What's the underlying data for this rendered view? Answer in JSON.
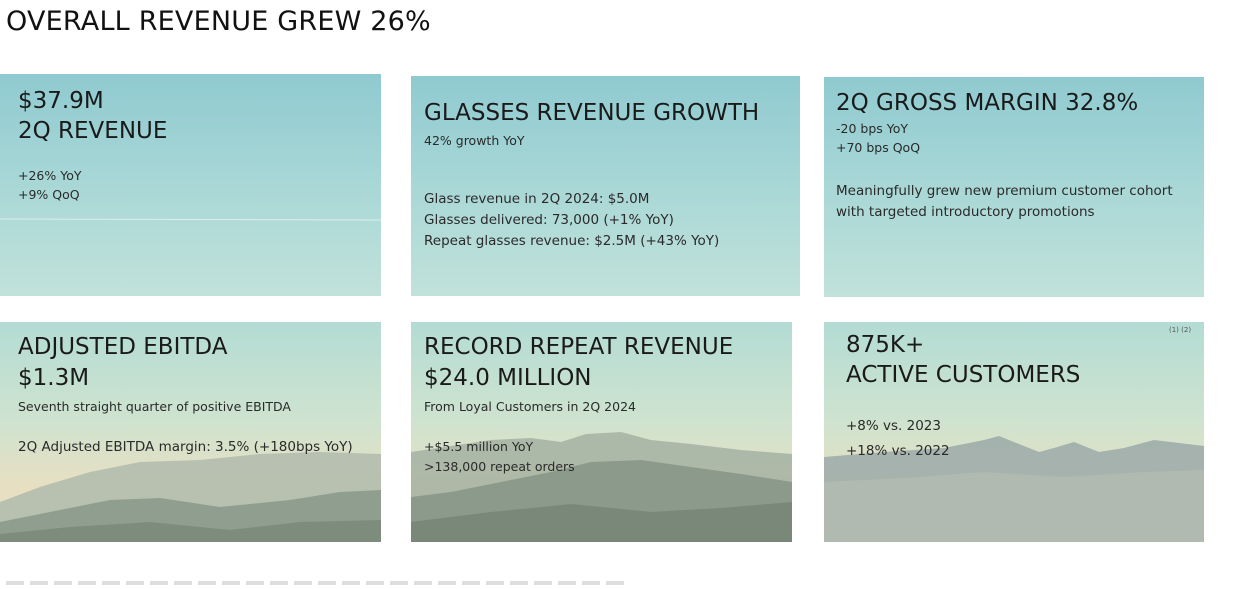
{
  "title": "OVERALL REVENUE GREW 26%",
  "cards": {
    "revenue": {
      "line1": "$37.9M",
      "line2": "2Q REVENUE",
      "details": [
        "+26% YoY",
        "+9% QoQ"
      ]
    },
    "glasses": {
      "heading": "GLASSES REVENUE GROWTH",
      "subheading": "42% growth YoY",
      "details": [
        "Glass revenue in 2Q 2024: $5.0M",
        "Glasses delivered: 73,000 (+1% YoY)",
        "Repeat glasses revenue: $2.5M (+43% YoY)"
      ]
    },
    "margin": {
      "heading": "2Q GROSS MARGIN 32.8%",
      "details": [
        "-20 bps YoY",
        "+70 bps QoQ"
      ],
      "note": [
        "Meaningfully grew new premium customer cohort",
        "with targeted introductory promotions"
      ]
    },
    "ebitda": {
      "line1": "ADJUSTED EBITDA",
      "line2": "$1.3M",
      "subheading": "Seventh straight quarter of positive EBITDA",
      "detail": "2Q Adjusted EBITDA margin: 3.5% (+180bps YoY)"
    },
    "repeat": {
      "line1": "RECORD REPEAT REVENUE",
      "line2": "$24.0 MILLION",
      "subheading": "From Loyal Customers in 2Q 2024",
      "details": [
        "+$5.5 million YoY",
        ">138,000 repeat orders"
      ]
    },
    "customers": {
      "footnote_marks": "(1) (2)",
      "line1": "875K+",
      "line2": "ACTIVE CUSTOMERS",
      "details": [
        "+8% vs. 2023",
        "+18% vs. 2022"
      ]
    }
  },
  "colors": {
    "sky_top": "#a6d6d6",
    "sky_bottom": "#ece0c2",
    "mountain_far": "#a7b6a8",
    "mountain_near": "#7f8f80"
  }
}
